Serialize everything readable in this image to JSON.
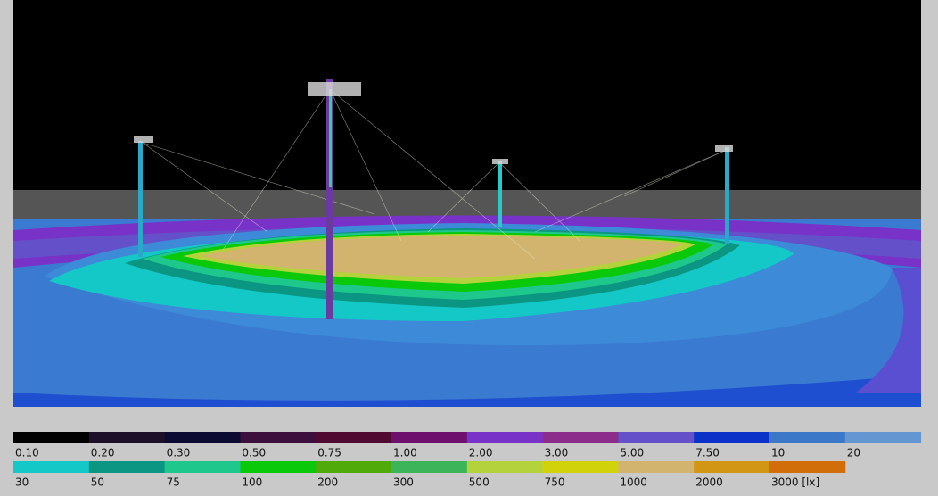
{
  "legend": {
    "rows": [
      [
        {
          "label": "0.10",
          "color": "#000000"
        },
        {
          "label": "0.20",
          "color": "#1e0f28"
        },
        {
          "label": "0.30",
          "color": "#0a0a32"
        },
        {
          "label": "0.50",
          "color": "#3c0f3c"
        },
        {
          "label": "0.75",
          "color": "#500a32"
        },
        {
          "label": "1.00",
          "color": "#6e0f6e"
        },
        {
          "label": "2.00",
          "color": "#7832c8"
        },
        {
          "label": "3.00",
          "color": "#8c2d8c"
        },
        {
          "label": "5.00",
          "color": "#6450c8"
        },
        {
          "label": "7.50",
          "color": "#0a32c8"
        },
        {
          "label": "10",
          "color": "#3c78c8"
        },
        {
          "label": "20",
          "color": "#6496d2"
        }
      ],
      [
        {
          "label": "30",
          "color": "#14c8c8"
        },
        {
          "label": "50",
          "color": "#0a9682"
        },
        {
          "label": "75",
          "color": "#1ec88c"
        },
        {
          "label": "100",
          "color": "#0ac80a"
        },
        {
          "label": "200",
          "color": "#50aa0a"
        },
        {
          "label": "300",
          "color": "#3cb45a"
        },
        {
          "label": "500",
          "color": "#b4d23c"
        },
        {
          "label": "750",
          "color": "#d2d20a"
        },
        {
          "label": "1000",
          "color": "#d2b46e"
        },
        {
          "label": "2000",
          "color": "#d29614"
        },
        {
          "label": "3000 [lx]",
          "color": "#d26e0a"
        }
      ]
    ]
  }
}
